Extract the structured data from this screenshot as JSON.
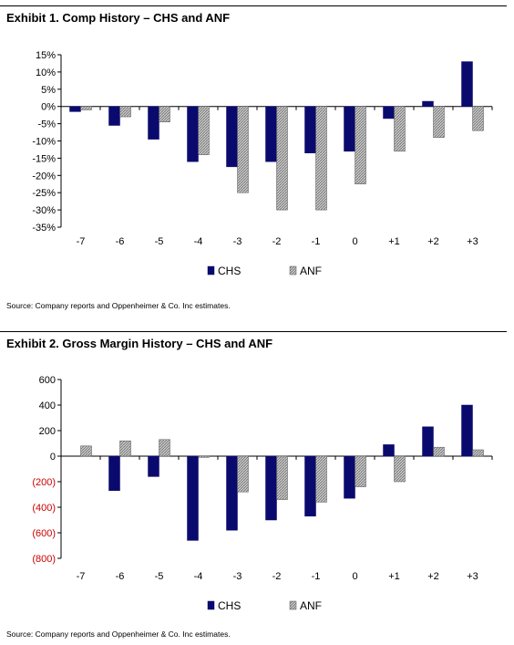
{
  "chart_data": [
    {
      "type": "bar",
      "title": "Exhibit 1. Comp History – CHS and ANF",
      "source": "Source:  Company reports and Oppenheimer & Co. Inc estimates.",
      "categories": [
        "-7",
        "-6",
        "-5",
        "-4",
        "-3",
        "-2",
        "-1",
        "0",
        "+1",
        "+2",
        "+3"
      ],
      "series": [
        {
          "name": "CHS",
          "values": [
            -1.5,
            -5.5,
            -9.5,
            -16,
            -17.5,
            -16,
            -13.5,
            -13,
            -3.5,
            1.5,
            13
          ],
          "color": "#0a0a6e"
        },
        {
          "name": "ANF",
          "values": [
            -1,
            -3,
            -4.5,
            -14,
            -25,
            -30,
            -30,
            -22.5,
            -13,
            -9,
            -7
          ],
          "color": "#a8a8a8"
        }
      ],
      "ylim": [
        -35,
        15
      ],
      "yticks": [
        15,
        10,
        5,
        0,
        -5,
        -10,
        -15,
        -20,
        -25,
        -30,
        -35
      ],
      "ytick_labels": [
        "15%",
        "10%",
        "5%",
        "0%",
        "-5%",
        "-10%",
        "-15%",
        "-20%",
        "-25%",
        "-30%",
        "-35%"
      ],
      "negative_tick_color": "#000000",
      "legend": "bottom-center",
      "grid": false
    },
    {
      "type": "bar",
      "title": "Exhibit 2. Gross Margin History – CHS and ANF",
      "source": "Source:  Company reports and Oppenheimer & Co. Inc estimates.",
      "categories": [
        "-7",
        "-6",
        "-5",
        "-4",
        "-3",
        "-2",
        "-1",
        "0",
        "+1",
        "+2",
        "+3"
      ],
      "series": [
        {
          "name": "CHS",
          "values": [
            0,
            -270,
            -160,
            -660,
            -580,
            -500,
            -470,
            -330,
            90,
            230,
            400
          ],
          "color": "#0a0a6e"
        },
        {
          "name": "ANF",
          "values": [
            80,
            120,
            130,
            -10,
            -280,
            -340,
            -360,
            -240,
            -200,
            70,
            50
          ],
          "color": "#a8a8a8"
        }
      ],
      "ylim": [
        -800,
        600
      ],
      "yticks": [
        600,
        400,
        200,
        0,
        -200,
        -400,
        -600,
        -800
      ],
      "ytick_labels": [
        "600",
        "400",
        "200",
        "0",
        "(200)",
        "(400)",
        "(600)",
        "(800)"
      ],
      "negative_tick_color": "#cc0000",
      "legend": "bottom-center",
      "grid": false
    }
  ]
}
